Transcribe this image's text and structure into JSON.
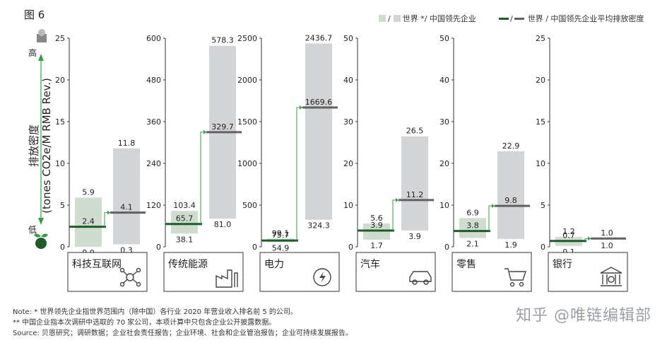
{
  "figure_label": "图 6",
  "legend": {
    "bar_slash": "/",
    "bar_text": "世界 */ 中国领先企业",
    "line_slash": "/",
    "line_text": "世界 / 中国领先企业平均排放密度"
  },
  "y_axis": {
    "title_line1": "排放密度",
    "title_line2": "(tones CO2e/M RMB Rev.)",
    "high": "高",
    "low": "低"
  },
  "colors": {
    "china": "#cfdccf",
    "world": "#d3d4d6",
    "china_line": "#1e5c2a",
    "world_line": "#5f6163",
    "connector": "#3c9a4a"
  },
  "chart_data": [
    {
      "type": "bar",
      "category": "科技互联网",
      "icon": "network-icon",
      "ylim": [
        0,
        25
      ],
      "ticks": [
        0,
        5,
        10,
        15,
        20,
        25
      ],
      "china": {
        "min": 0.0,
        "max": 5.9,
        "avg": 2.4
      },
      "world": {
        "min": 0.3,
        "max": 11.8,
        "avg": 4.1
      },
      "labels": {
        "china_max": "5.9",
        "china_avg": "2.4",
        "china_min": "0.0",
        "world_max": "11.8",
        "world_avg": "4.1",
        "world_min": "0.3"
      }
    },
    {
      "type": "bar",
      "category": "传统能源",
      "icon": "factory-icon",
      "ylim": [
        0,
        600
      ],
      "ticks": [
        0,
        120,
        240,
        360,
        480,
        600
      ],
      "china": {
        "min": 38.1,
        "max": 103.4,
        "avg": 65.7
      },
      "world": {
        "min": 81.0,
        "max": 578.3,
        "avg": 329.7
      },
      "labels": {
        "china_max": "103.4",
        "china_avg": "65.7",
        "china_min": "38.1",
        "world_max": "578.3",
        "world_avg": "329.7",
        "world_min": "81.0"
      }
    },
    {
      "type": "bar",
      "category": "电力",
      "icon": "power-cycle-icon",
      "ylim": [
        0,
        2500
      ],
      "ticks": [
        0,
        500,
        1000,
        1500,
        2000,
        2500
      ],
      "china": {
        "min": 54.9,
        "max": 99.1,
        "avg": 75.7
      },
      "world": {
        "min": 324.3,
        "max": 2436.7,
        "avg": 1669.6
      },
      "labels": {
        "china_max": "99.1",
        "china_avg": "75.7",
        "china_min": "54.9",
        "world_max": "2436.7",
        "world_avg": "1669.6",
        "world_min": "324.3"
      }
    },
    {
      "type": "bar",
      "category": "汽车",
      "icon": "car-icon",
      "ylim": [
        0,
        50
      ],
      "ticks": [
        0,
        10,
        20,
        30,
        40,
        50
      ],
      "china": {
        "min": 1.7,
        "max": 5.6,
        "avg": 3.9
      },
      "world": {
        "min": 3.9,
        "max": 26.5,
        "avg": 11.2
      },
      "labels": {
        "china_max": "5.6",
        "china_avg": "3.9",
        "china_min": "1.7",
        "world_max": "26.5",
        "world_avg": "11.2",
        "world_min": "3.9"
      }
    },
    {
      "type": "bar",
      "category": "零售",
      "icon": "cart-icon",
      "ylim": [
        0,
        50
      ],
      "ticks": [
        0,
        10,
        20,
        30,
        40,
        50
      ],
      "china": {
        "min": 2.1,
        "max": 6.9,
        "avg": 3.8
      },
      "world": {
        "min": 1.9,
        "max": 22.9,
        "avg": 9.8
      },
      "labels": {
        "china_max": "6.9",
        "china_avg": "3.8",
        "china_min": "2.1",
        "world_max": "22.9",
        "world_avg": "9.8",
        "world_min": "1.9"
      }
    },
    {
      "type": "bar",
      "category": "银行",
      "icon": "bank-icon",
      "ylim": [
        0,
        25
      ],
      "ticks": [
        0,
        5,
        10,
        15,
        20,
        25
      ],
      "china": {
        "min": 0.1,
        "max": 1.2,
        "avg": 0.7
      },
      "world": {
        "min": 1.0,
        "max": 1.0,
        "avg": 1.0
      },
      "labels": {
        "china_max": "1.2",
        "china_avg": "0.7",
        "china_min": "0.1",
        "world_max": "1.0",
        "world_avg": "",
        "world_min": "1.0"
      }
    }
  ],
  "notes": {
    "line1": "Note: * 世界领先企业指世界范围内（除中国）各行业 2020 年营业收入排名前 5 的公司。",
    "line2": "** 中国企业指本次调研中选取的 70 家公司，本项计算中只包含企业公开披露数据。",
    "line3": "Source: 贝恩研究；调研数据；企业社会责任报告；企业环境、社会和企业管治报告；企业可持续发展报告。"
  },
  "watermark": "知乎 @唯链编辑部"
}
